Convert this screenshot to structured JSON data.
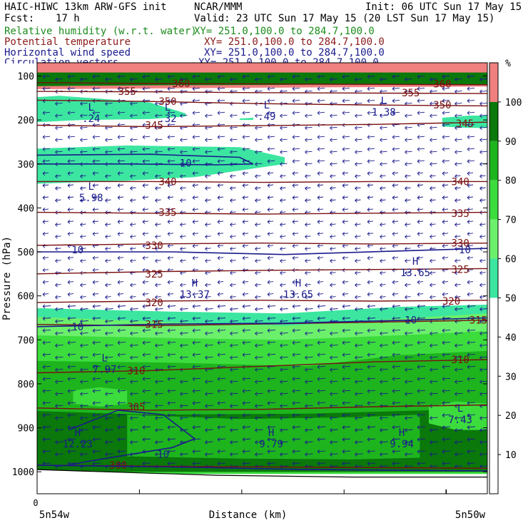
{
  "header": {
    "model": "HAIC-HIWC 13km ARW-GFS init",
    "center": "NCAR/MMM",
    "init": "Init: 06 UTC Sun 17 May 15",
    "fcst_label": "Fcst:",
    "fcst_value": "17 h",
    "valid": "Valid: 23 UTC Sun 17 May 15 (20 LST Sun 17 May 15)",
    "fields": [
      {
        "name": "Relative humidity (w.r.t. water)",
        "xy": "XY= 251.0,100.0 to 284.7,100.0",
        "color": "#1c8c1c"
      },
      {
        "name": "Potential temperature",
        "xy": "XY= 251.0,100.0 to 284.7,100.0",
        "color": "#8b1a1a"
      },
      {
        "name": "Horizontal wind speed",
        "xy": "XY= 251.0,100.0 to 284.7,100.0",
        "color": "#1a1a8c"
      },
      {
        "name": "Circulation vectors",
        "xy": "XY= 251.0,100.0 to 284.7,100.0",
        "color": "#1a1a8c"
      }
    ]
  },
  "axes": {
    "ylabel": "Pressure (hPa)",
    "xlabel": "Distance (km)",
    "x_left_label": "5n54w",
    "x_right_label": "5n50w",
    "x_zero_label": "0"
  },
  "colorbar": {
    "unit": "%",
    "ticks": [
      "100",
      "90",
      "80",
      "70",
      "60",
      "50",
      "40",
      "30",
      "20",
      "10"
    ],
    "bins": [
      {
        "from": 0,
        "to": 50,
        "color": "#ffffff"
      },
      {
        "from": 50,
        "to": 60,
        "color": "#3ce6a0"
      },
      {
        "from": 60,
        "to": 70,
        "color": "#6cf06c"
      },
      {
        "from": 70,
        "to": 80,
        "color": "#3cdc3c"
      },
      {
        "from": 80,
        "to": 90,
        "color": "#1eb41e"
      },
      {
        "from": 90,
        "to": 100,
        "color": "#0a780a"
      },
      {
        "from": 100,
        "to": 110,
        "color": "#f08080"
      }
    ]
  },
  "chart_data": {
    "type": "heatmap",
    "xlim": [
      0,
      33.7
    ],
    "ylim": [
      1050,
      70
    ],
    "yticks": [
      100,
      200,
      300,
      400,
      500,
      600,
      700,
      800,
      900,
      1000
    ],
    "theta_isentropes": [
      {
        "label": "300",
        "p": [
          985,
          988,
          990,
          992
        ]
      },
      {
        "label": "305",
        "p": [
          855,
          860,
          858,
          852,
          848
        ]
      },
      {
        "label": "310",
        "p": [
          775,
          770,
          760,
          750,
          745
        ]
      },
      {
        "label": "315",
        "p": [
          665,
          668,
          664,
          660,
          655
        ]
      },
      {
        "label": "320",
        "p": [
          615,
          612,
          610,
          612,
          610
        ]
      },
      {
        "label": "325",
        "p": [
          550,
          545,
          542,
          540,
          538
        ]
      },
      {
        "label": "330",
        "p": [
          485,
          482,
          480,
          482,
          480
        ]
      },
      {
        "label": "335",
        "p": [
          410,
          412,
          414,
          412,
          410
        ]
      },
      {
        "label": "340",
        "p": [
          340,
          340,
          342,
          340,
          340
        ]
      },
      {
        "label": "345",
        "p": [
          212,
          215,
          213,
          210,
          205
        ]
      },
      {
        "label": "350",
        "p": [
          155,
          158,
          163,
          166,
          168
        ]
      },
      {
        "label": "355",
        "p": [
          135,
          136,
          138,
          139,
          140
        ]
      },
      {
        "label": "360",
        "p": [
          115,
          117,
          118,
          119,
          120
        ]
      }
    ],
    "theta_label_spots": [
      {
        "label": "300",
        "x": 0.18,
        "p": 985
      },
      {
        "label": "305",
        "x": 0.22,
        "p": 852
      },
      {
        "label": "310",
        "x": 0.22,
        "p": 770
      },
      {
        "label": "310",
        "x": 0.94,
        "p": 745
      },
      {
        "label": "315",
        "x": 0.26,
        "p": 665
      },
      {
        "label": "315",
        "x": 0.98,
        "p": 655
      },
      {
        "label": "320",
        "x": 0.26,
        "p": 615
      },
      {
        "label": "320",
        "x": 0.92,
        "p": 612
      },
      {
        "label": "325",
        "x": 0.26,
        "p": 550
      },
      {
        "label": "325",
        "x": 0.94,
        "p": 540
      },
      {
        "label": "330",
        "x": 0.26,
        "p": 485
      },
      {
        "label": "330",
        "x": 0.94,
        "p": 480
      },
      {
        "label": "335",
        "x": 0.29,
        "p": 410
      },
      {
        "label": "335",
        "x": 0.94,
        "p": 412
      },
      {
        "label": "340",
        "x": 0.29,
        "p": 340
      },
      {
        "label": "340",
        "x": 0.94,
        "p": 340
      },
      {
        "label": "345",
        "x": 0.26,
        "p": 212
      },
      {
        "label": "345",
        "x": 0.95,
        "p": 208
      },
      {
        "label": "350",
        "x": 0.29,
        "p": 158
      },
      {
        "label": "350",
        "x": 0.9,
        "p": 166
      },
      {
        "label": "355",
        "x": 0.2,
        "p": 135
      },
      {
        "label": "355",
        "x": 0.83,
        "p": 138
      },
      {
        "label": "360",
        "x": 0.32,
        "p": 117
      },
      {
        "label": "360",
        "x": 0.9,
        "p": 118
      }
    ],
    "wind_speed_contour": "10",
    "wind_labels": [
      {
        "label": "10",
        "x": 0.33,
        "p": 298
      },
      {
        "label": "10",
        "x": 0.09,
        "p": 495
      },
      {
        "label": "10",
        "x": 0.95,
        "p": 495
      },
      {
        "label": "10",
        "x": 0.09,
        "p": 670
      },
      {
        "label": "10",
        "x": 0.83,
        "p": 655
      },
      {
        "label": "10",
        "x": 0.28,
        "p": 960
      }
    ],
    "extrema": [
      {
        "type": "L",
        "value": ".24",
        "x": 0.12,
        "p": 195
      },
      {
        "type": "L",
        "value": ".32",
        "x": 0.29,
        "p": 195
      },
      {
        "type": "L",
        "value": ".49",
        "x": 0.51,
        "p": 190
      },
      {
        "type": "L",
        "value": "1.38",
        "x": 0.77,
        "p": 180
      },
      {
        "type": "L",
        "value": "5.98",
        "x": 0.12,
        "p": 375
      },
      {
        "type": "H",
        "value": "13.37",
        "x": 0.35,
        "p": 595
      },
      {
        "type": "H",
        "value": "13.65",
        "x": 0.58,
        "p": 595
      },
      {
        "type": "H",
        "value": "13.65",
        "x": 0.84,
        "p": 545
      },
      {
        "type": "L",
        "value": "7.97",
        "x": 0.15,
        "p": 765
      },
      {
        "type": "L",
        "value": "7.43",
        "x": 0.94,
        "p": 880
      },
      {
        "type": "H",
        "value": "12.23",
        "x": 0.09,
        "p": 935
      },
      {
        "type": "H",
        "value": "9.79",
        "x": 0.52,
        "p": 935
      },
      {
        "type": "H",
        "value": "9.94",
        "x": 0.81,
        "p": 935
      }
    ],
    "rh_regions": [
      {
        "level": "100-110",
        "pmin": 70,
        "pmax": 130
      },
      {
        "level": "90-100",
        "pmin": 860,
        "pmax": 1000
      },
      {
        "level": "80-90",
        "pmin": 750,
        "pmax": 990
      },
      {
        "level": "70-80",
        "pmin": 690,
        "pmax": 1000
      },
      {
        "level": "60-70",
        "pmin": 645,
        "pmax": 700
      },
      {
        "level": "50-60",
        "pmin": 630,
        "pmax": 665
      }
    ]
  }
}
